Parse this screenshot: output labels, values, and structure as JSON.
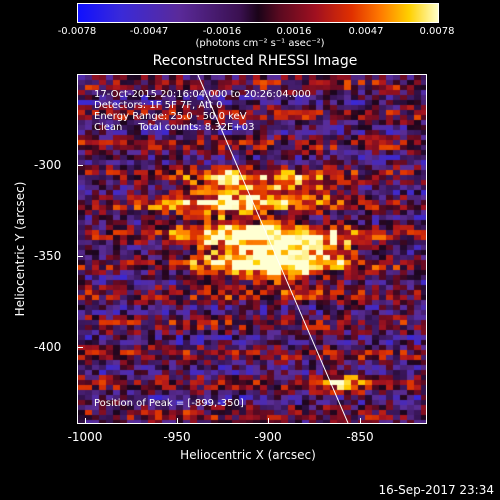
{
  "colorbar": {
    "ticks": [
      "-0.0078",
      "-0.0047",
      "-0.0016",
      "0.0016",
      "0.0047",
      "0.0078"
    ],
    "unit": "(photons cm⁻² s⁻¹ asec⁻²)"
  },
  "title": "Reconstructed RHESSI Image",
  "info": {
    "line1": "17-Oct-2015 20:16:04.000 to 20:26:04.000",
    "line2": "Detectors: 1F 5F 7F, Att 0",
    "line3": "Energy Range: 25.0 - 50.0 keV",
    "line4": "Clean     Total counts: 8.32E+03"
  },
  "peak": "Position of Peak = [-899,-350]",
  "axes": {
    "xlabel": "Heliocentric X (arcsec)",
    "ylabel": "Heliocentric Y (arcsec)",
    "xticks": [
      "-1000",
      "-950",
      "-900",
      "-850"
    ],
    "yticks": [
      "-300",
      "-350",
      "-400"
    ]
  },
  "footer_date": "16-Sep-2017 23:34"
}
